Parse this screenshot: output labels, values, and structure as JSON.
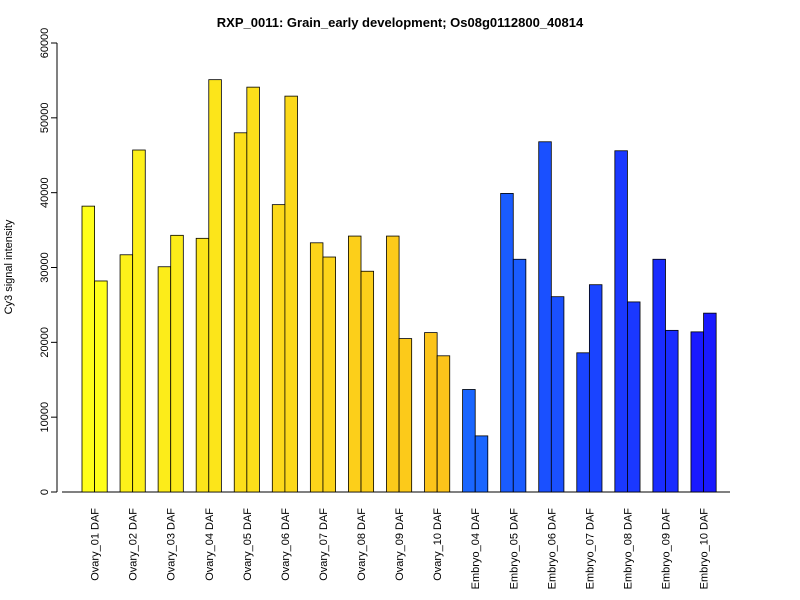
{
  "chart_data": {
    "type": "bar",
    "title": "RXP_0011: Grain_early development; Os08g0112800_40814",
    "xlabel": "",
    "ylabel": "Cy3 signal intensity",
    "ylim": [
      0,
      60000
    ],
    "yticks": [
      "0",
      "10000",
      "20000",
      "30000",
      "40000",
      "50000",
      "60000"
    ],
    "grid": false,
    "legend": "none",
    "categories": [
      "Ovary_01 DAF",
      "Ovary_02 DAF",
      "Ovary_03 DAF",
      "Ovary_04 DAF",
      "Ovary_05 DAF",
      "Ovary_06 DAF",
      "Ovary_07 DAF",
      "Ovary_08 DAF",
      "Ovary_09 DAF",
      "Ovary_10 DAF",
      "Embryo_04 DAF",
      "Embryo_05 DAF",
      "Embryo_06 DAF",
      "Embryo_07 DAF",
      "Embryo_08 DAF",
      "Embryo_09 DAF",
      "Embryo_10 DAF"
    ],
    "series": [
      {
        "values": [
          38200,
          31700,
          30100,
          33900,
          48000,
          38400,
          33300,
          34200,
          34200,
          21300,
          13700,
          39900,
          46800,
          18600,
          45600,
          31100,
          21400
        ]
      },
      {
        "values": [
          28200,
          45700,
          34300,
          55100,
          54100,
          52900,
          31400,
          29500,
          20500,
          18200,
          7500,
          31100,
          26100,
          27700,
          25400,
          21600,
          23900
        ]
      }
    ],
    "colors": [
      "#ffff1a",
      "#fdf01a",
      "#fcec1a",
      "#fce51a",
      "#fcdf1a",
      "#fcd91a",
      "#fcd41a",
      "#fccf1a",
      "#fcca1a",
      "#fcc41a",
      "#1a66ff",
      "#1a5cff",
      "#1a50ff",
      "#1a44ff",
      "#1a38ff",
      "#1a2cff",
      "#1a1aff"
    ]
  }
}
